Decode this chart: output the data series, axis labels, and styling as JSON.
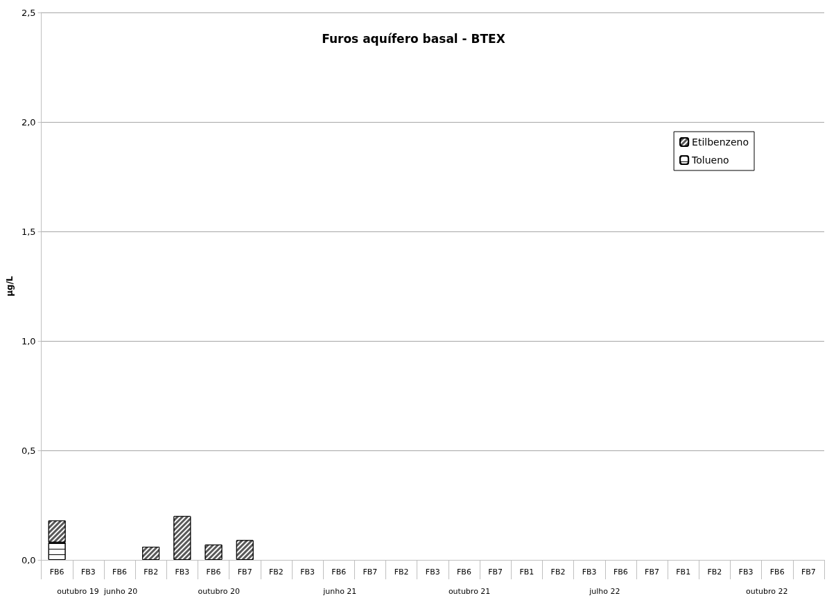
{
  "chart_data": {
    "type": "bar",
    "title": "Furos aquífero basal - BTEX",
    "ylabel": "µg/L",
    "categories": [
      "FB6",
      "FB3",
      "FB6",
      "FB2",
      "FB3",
      "FB6",
      "FB7",
      "FB2",
      "FB3",
      "FB6",
      "FB7",
      "FB2",
      "FB3",
      "FB6",
      "FB7",
      "FB1",
      "FB2",
      "FB3",
      "FB6",
      "FB7",
      "FB1",
      "FB2",
      "FB3",
      "FB6",
      "FB7"
    ],
    "series": [
      {
        "name": "Tolueno",
        "color": "#ffffff",
        "values": [
          0.08,
          0,
          0,
          0,
          0,
          0,
          0,
          0,
          0,
          0,
          0,
          0,
          0,
          0,
          0,
          0,
          0,
          0,
          0,
          0,
          0,
          0,
          0,
          0,
          0
        ]
      },
      {
        "name": "Etilbenzeno",
        "color": "#595959",
        "values": [
          0.1,
          0,
          0,
          0.06,
          0.2,
          0.07,
          0.09,
          0,
          0,
          0,
          0,
          0,
          0,
          0,
          0,
          0,
          0,
          0,
          0,
          0,
          0,
          0,
          0,
          0,
          0
        ]
      }
    ],
    "stacked": true,
    "ylim": [
      0,
      2.5
    ],
    "yticks": [
      {
        "value": 0,
        "label": "0,0"
      },
      {
        "value": 0.5,
        "label": "0,5"
      },
      {
        "value": 1,
        "label": "1,0"
      },
      {
        "value": 1.5,
        "label": "1,5"
      },
      {
        "value": 2,
        "label": "2,0"
      },
      {
        "value": 2.5,
        "label": "2,5"
      }
    ],
    "grid": "y",
    "legend": "top right",
    "annotations": [
      "outubro 19",
      "junho 20",
      "outubro 20",
      "junho 21",
      "outubro 21",
      "julho 22",
      "outubro 22"
    ]
  }
}
